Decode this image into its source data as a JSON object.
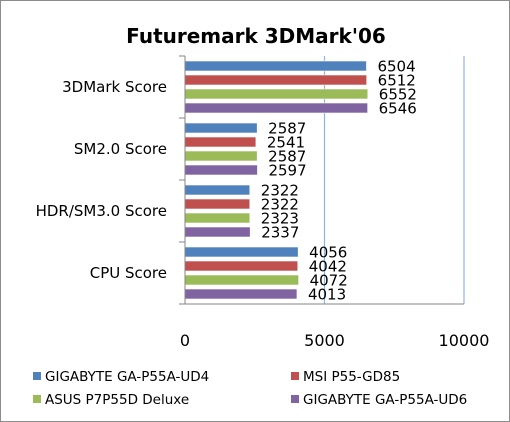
{
  "chart_data": {
    "type": "bar",
    "orientation": "horizontal",
    "title": "Futuremark 3DMark'06",
    "categories": [
      "3DMark Score",
      "SM2.0 Score",
      "HDR/SM3.0 Score",
      "CPU Score"
    ],
    "series": [
      {
        "name": "GIGABYTE GA-P55A-UD4",
        "color": "#4f81bd",
        "values": [
          6504,
          2587,
          2322,
          4056
        ]
      },
      {
        "name": "MSI P55-GD85",
        "color": "#c0504d",
        "values": [
          6512,
          2541,
          2322,
          4042
        ]
      },
      {
        "name": "ASUS P7P55D Deluxe",
        "color": "#9bbb59",
        "values": [
          6552,
          2587,
          2323,
          4072
        ]
      },
      {
        "name": "GIGABYTE GA-P55A-UD6",
        "color": "#8064a2",
        "values": [
          6546,
          2597,
          2337,
          4013
        ]
      }
    ],
    "xlim": [
      0,
      10000
    ],
    "xticks": [
      0,
      5000,
      10000
    ],
    "grid": true,
    "legend_position": "bottom"
  }
}
